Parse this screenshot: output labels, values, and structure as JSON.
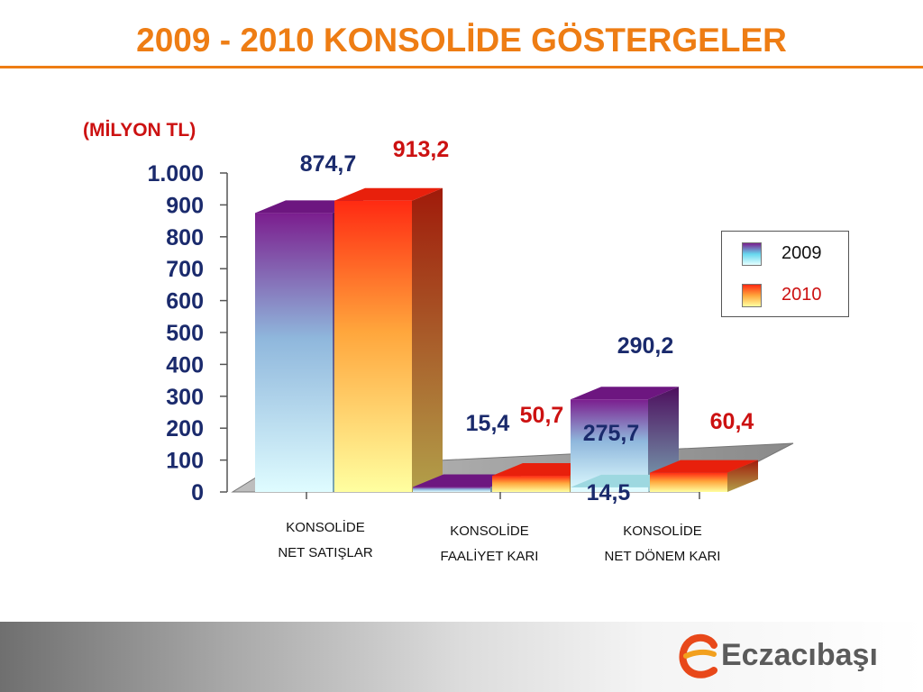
{
  "title": "2009 - 2010 KONSOLİDE GÖSTERGELER",
  "unit_label": "(MİLYON  TL)",
  "brand": {
    "name": "Eczacıbaşı",
    "logo_icon": "eczacibasi-e-logo-icon",
    "accent_color": "#ee7d14"
  },
  "chart_data": {
    "type": "bar",
    "style": "3d-clustered-column",
    "categories": [
      "KONSOLİDE NET SATIŞLAR",
      "KONSOLİDE FAALİYET KARI",
      "KONSOLİDE NET DÖNEM KARI"
    ],
    "category_lines": [
      [
        "KONSOLİDE",
        "NET SATIŞLAR"
      ],
      [
        "KONSOLİDE",
        "FAALİYET KARI"
      ],
      [
        "KONSOLİDE",
        "NET DÖNEM KARI"
      ]
    ],
    "series": [
      {
        "name": "2009",
        "values": [
          874.7,
          15.4,
          14.5
        ],
        "labels": [
          "874,7",
          "15,4",
          "14,5"
        ],
        "label_color": "#1a2a6c"
      },
      {
        "name": "2010",
        "values": [
          913.2,
          50.7,
          60.4
        ],
        "labels": [
          "913,2",
          "50,7",
          "60,4"
        ],
        "label_color": "#cc1111"
      }
    ],
    "extra_labels": [
      {
        "text": "290,2",
        "category": 2,
        "color": "#1a2a6c",
        "position": "above-back-bar"
      },
      {
        "text": "275,7",
        "category": 2,
        "color": "#1a2a6c",
        "position": "on-back-bar"
      }
    ],
    "y_axis": {
      "ticks": [
        0,
        100,
        200,
        300,
        400,
        500,
        600,
        700,
        800,
        900,
        1000
      ],
      "tick_labels": [
        "0",
        "100",
        "200",
        "300",
        "400",
        "500",
        "600",
        "700",
        "800",
        "900",
        "1.000"
      ],
      "tick_color": "#1a2a6c"
    },
    "ylim": [
      0,
      1000
    ],
    "legend": {
      "placement": "right",
      "entries": [
        "2009",
        "2010"
      ]
    },
    "grid": false
  }
}
